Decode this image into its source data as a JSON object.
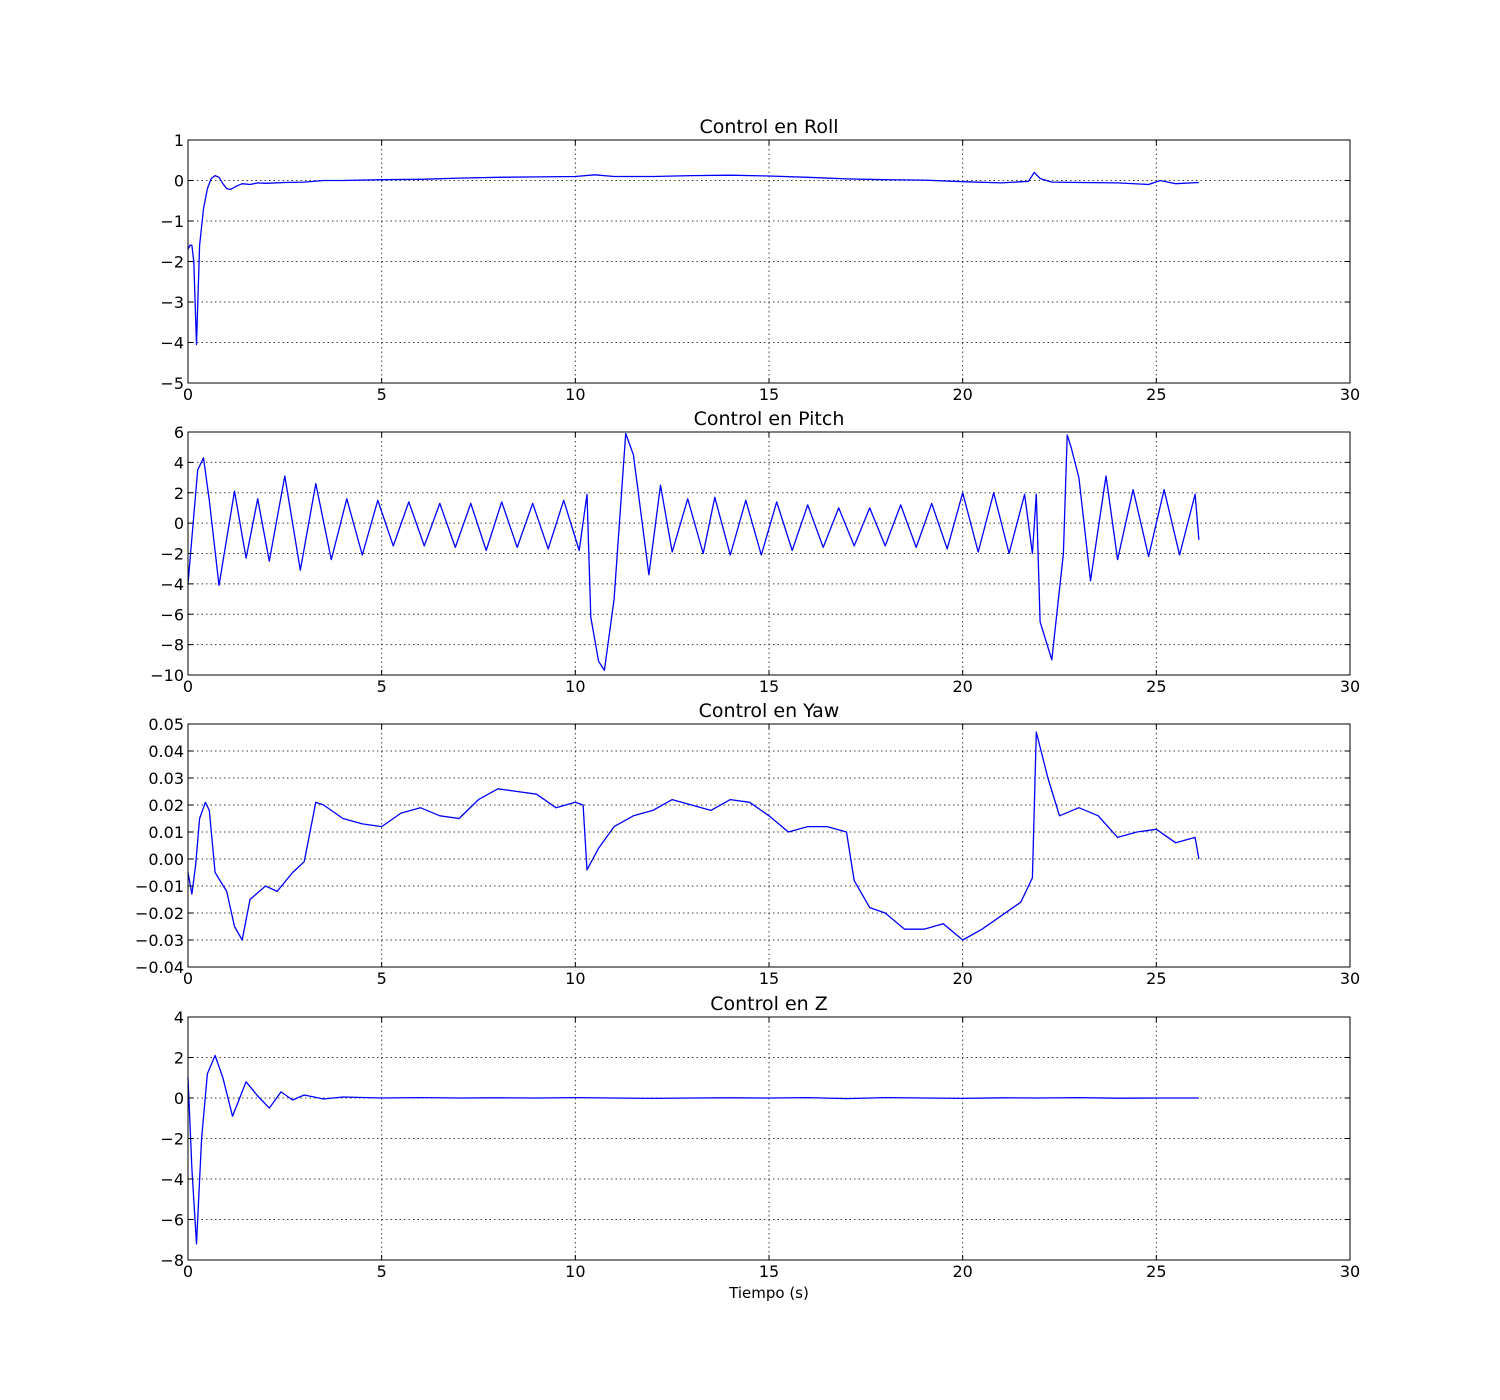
{
  "style": {
    "line_color": "#0000ff",
    "background": "#ffffff"
  },
  "chart_data": [
    {
      "type": "line",
      "title": "Control en Roll",
      "xlabel": "",
      "ylabel": "",
      "xlim": [
        0,
        30
      ],
      "ylim": [
        -5,
        1
      ],
      "xticks": [
        0,
        5,
        10,
        15,
        20,
        25,
        30
      ],
      "yticks": [
        -5,
        -4,
        -3,
        -2,
        -1,
        0,
        1
      ],
      "ytick_labels": [
        "−5",
        "−4",
        "−3",
        "−2",
        "−1",
        "0",
        "1"
      ],
      "grid": true,
      "series": [
        {
          "x": [
            0,
            0.05,
            0.1,
            0.15,
            0.22,
            0.3,
            0.4,
            0.5,
            0.6,
            0.7,
            0.8,
            0.9,
            1.0,
            1.1,
            1.25,
            1.4,
            1.6,
            1.8,
            2,
            2.5,
            3,
            3.5,
            4,
            5,
            6,
            7,
            8,
            9,
            10,
            10.5,
            11,
            12,
            13,
            14,
            15,
            16,
            17,
            18,
            19,
            20,
            21,
            21.7,
            21.85,
            22.0,
            22.3,
            23,
            24,
            24.8,
            25.1,
            25.5,
            26.1
          ],
          "y": [
            -1.7,
            -1.6,
            -1.6,
            -2.0,
            -4.05,
            -1.6,
            -0.7,
            -0.2,
            0.05,
            0.12,
            0.08,
            -0.08,
            -0.2,
            -0.22,
            -0.14,
            -0.08,
            -0.1,
            -0.06,
            -0.07,
            -0.05,
            -0.04,
            0,
            0,
            0.02,
            0.03,
            0.06,
            0.08,
            0.09,
            0.1,
            0.14,
            0.1,
            0.1,
            0.12,
            0.13,
            0.11,
            0.08,
            0.04,
            0.02,
            0.01,
            -0.03,
            -0.06,
            -0.02,
            0.2,
            0.05,
            -0.04,
            -0.05,
            -0.06,
            -0.1,
            0.0,
            -0.08,
            -0.05
          ]
        }
      ]
    },
    {
      "type": "line",
      "title": "Control en Pitch",
      "xlabel": "",
      "ylabel": "",
      "xlim": [
        0,
        30
      ],
      "ylim": [
        -10,
        6
      ],
      "xticks": [
        0,
        5,
        10,
        15,
        20,
        25,
        30
      ],
      "yticks": [
        -10,
        -8,
        -6,
        -4,
        -2,
        0,
        2,
        4,
        6
      ],
      "ytick_labels": [
        "−10",
        "−8",
        "−6",
        "−4",
        "−2",
        "0",
        "2",
        "4",
        "6"
      ],
      "grid": true,
      "series": [
        {
          "x": [
            0,
            0.15,
            0.25,
            0.4,
            0.55,
            0.8,
            1.2,
            1.5,
            1.8,
            2.1,
            2.5,
            2.9,
            3.3,
            3.7,
            4.1,
            4.5,
            4.9,
            5.3,
            5.7,
            6.1,
            6.5,
            6.9,
            7.3,
            7.7,
            8.1,
            8.5,
            8.9,
            9.3,
            9.7,
            10.1,
            10.3,
            10.4,
            10.6,
            10.75,
            11.0,
            11.3,
            11.5,
            11.9,
            12.2,
            12.5,
            12.9,
            13.3,
            13.6,
            14.0,
            14.4,
            14.8,
            15.2,
            15.6,
            16.0,
            16.4,
            16.8,
            17.2,
            17.6,
            18.0,
            18.4,
            18.8,
            19.2,
            19.6,
            20.0,
            20.4,
            20.8,
            21.2,
            21.6,
            21.8,
            21.9,
            22.0,
            22.3,
            22.6,
            22.7,
            22.8,
            23.0,
            23.3,
            23.7,
            24.0,
            24.4,
            24.8,
            25.2,
            25.6,
            26.0,
            26.1
          ],
          "y": [
            -4.0,
            0.5,
            3.5,
            4.3,
            1.5,
            -4.1,
            2.1,
            -2.3,
            1.6,
            -2.5,
            3.1,
            -3.1,
            2.6,
            -2.4,
            1.6,
            -2.1,
            1.5,
            -1.5,
            1.4,
            -1.5,
            1.3,
            -1.6,
            1.3,
            -1.8,
            1.4,
            -1.6,
            1.3,
            -1.7,
            1.5,
            -1.8,
            1.9,
            -6.2,
            -9.1,
            -9.7,
            -5.0,
            5.9,
            4.5,
            -3.4,
            2.5,
            -1.9,
            1.6,
            -2.0,
            1.7,
            -2.1,
            1.5,
            -2.1,
            1.4,
            -1.8,
            1.2,
            -1.6,
            1.0,
            -1.5,
            1.0,
            -1.5,
            1.2,
            -1.6,
            1.3,
            -1.7,
            2.0,
            -1.9,
            2.0,
            -2.0,
            1.9,
            -2.0,
            1.9,
            -6.5,
            -9.0,
            -2.0,
            5.8,
            5.0,
            3.0,
            -3.8,
            3.1,
            -2.4,
            2.2,
            -2.2,
            2.2,
            -2.1,
            1.9,
            -1.1
          ]
        }
      ]
    },
    {
      "type": "line",
      "title": "Control en Yaw",
      "xlabel": "",
      "ylabel": "",
      "xlim": [
        0,
        30
      ],
      "ylim": [
        -0.04,
        0.05
      ],
      "xticks": [
        0,
        5,
        10,
        15,
        20,
        25,
        30
      ],
      "yticks": [
        -0.04,
        -0.03,
        -0.02,
        -0.01,
        0,
        0.01,
        0.02,
        0.03,
        0.04,
        0.05
      ],
      "ytick_labels": [
        "−0.04",
        "−0.03",
        "−0.02",
        "−0.01",
        "0.00",
        "0.01",
        "0.02",
        "0.03",
        "0.04",
        "0.05"
      ],
      "grid": true,
      "series": [
        {
          "x": [
            0,
            0.1,
            0.2,
            0.3,
            0.45,
            0.55,
            0.7,
            1.0,
            1.2,
            1.4,
            1.6,
            2.0,
            2.3,
            2.7,
            3.0,
            3.3,
            3.5,
            4.0,
            4.5,
            5.0,
            5.5,
            6.0,
            6.5,
            7.0,
            7.5,
            8.0,
            8.5,
            9.0,
            9.5,
            10.0,
            10.2,
            10.3,
            10.6,
            11.0,
            11.5,
            12.0,
            12.5,
            13.0,
            13.5,
            14.0,
            14.5,
            15.0,
            15.5,
            16.0,
            16.5,
            17.0,
            17.2,
            17.6,
            18.0,
            18.5,
            19.0,
            19.5,
            20.0,
            20.5,
            21.0,
            21.5,
            21.8,
            21.9,
            22.2,
            22.5,
            23.0,
            23.5,
            24.0,
            24.5,
            25.0,
            25.5,
            26.0,
            26.1
          ],
          "y": [
            -0.005,
            -0.013,
            -0.002,
            0.015,
            0.021,
            0.018,
            -0.005,
            -0.012,
            -0.025,
            -0.03,
            -0.015,
            -0.01,
            -0.012,
            -0.005,
            -0.001,
            0.021,
            0.02,
            0.015,
            0.013,
            0.012,
            0.017,
            0.019,
            0.016,
            0.015,
            0.022,
            0.026,
            0.025,
            0.024,
            0.019,
            0.021,
            0.02,
            -0.004,
            0.004,
            0.012,
            0.016,
            0.018,
            0.022,
            0.02,
            0.018,
            0.022,
            0.021,
            0.016,
            0.01,
            0.012,
            0.012,
            0.01,
            -0.008,
            -0.018,
            -0.02,
            -0.026,
            -0.026,
            -0.024,
            -0.03,
            -0.026,
            -0.021,
            -0.016,
            -0.007,
            0.047,
            0.03,
            0.016,
            0.019,
            0.016,
            0.008,
            0.01,
            0.011,
            0.006,
            0.008,
            0.0
          ]
        }
      ]
    },
    {
      "type": "line",
      "title": "Control en Z",
      "xlabel": "Tiempo (s)",
      "ylabel": "",
      "xlim": [
        0,
        30
      ],
      "ylim": [
        -8,
        4
      ],
      "xticks": [
        0,
        5,
        10,
        15,
        20,
        25,
        30
      ],
      "yticks": [
        -8,
        -6,
        -4,
        -2,
        0,
        2,
        4
      ],
      "ytick_labels": [
        "−8",
        "−6",
        "−4",
        "−2",
        "0",
        "2",
        "4"
      ],
      "grid": true,
      "series": [
        {
          "x": [
            0,
            0.1,
            0.22,
            0.35,
            0.5,
            0.7,
            0.9,
            1.15,
            1.5,
            1.8,
            2.1,
            2.4,
            2.7,
            3.0,
            3.5,
            4,
            5,
            6,
            7,
            8,
            9,
            10,
            11,
            12,
            13,
            14,
            15,
            16,
            17,
            18,
            19,
            20,
            21,
            22,
            23,
            24,
            25,
            26.1
          ],
          "y": [
            1.0,
            -3.5,
            -7.2,
            -2.0,
            1.2,
            2.1,
            1.0,
            -0.9,
            0.8,
            0.1,
            -0.5,
            0.3,
            -0.1,
            0.15,
            -0.05,
            0.05,
            0.0,
            0.02,
            0.0,
            0.01,
            0.0,
            0.02,
            0.0,
            -0.02,
            0.0,
            0.01,
            0.0,
            0.02,
            -0.03,
            0.02,
            0.0,
            -0.02,
            0.01,
            0.0,
            0.02,
            -0.01,
            0.0,
            0.0
          ]
        }
      ]
    }
  ]
}
